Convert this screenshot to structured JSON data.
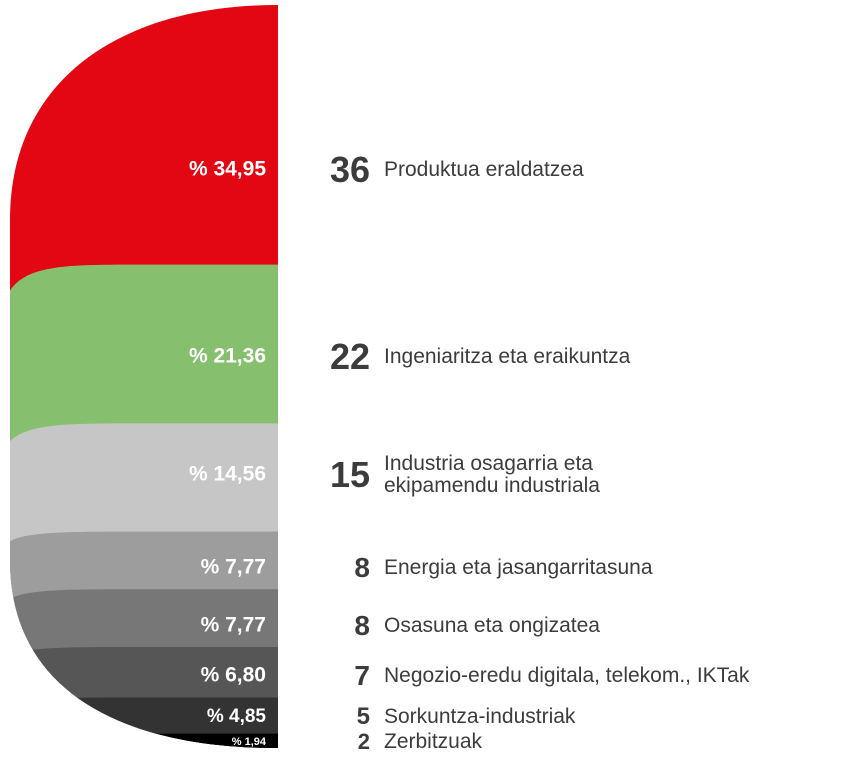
{
  "chart_data": {
    "type": "stacked-shape",
    "categories": [
      "Produktua eraldatzea",
      "Ingeniaritza eta eraikuntza",
      "Industria osagarria eta\nekipamendu industriala",
      "Energia eta jasangarritasuna",
      "Osasuna eta ongizatea",
      "Negozio-eredu digitala, telekom., IKTak",
      "Sorkuntza-industriak",
      "Zerbitzuak"
    ],
    "values": [
      34.95,
      21.36,
      14.56,
      7.77,
      7.77,
      6.8,
      4.85,
      1.94
    ],
    "value_labels": [
      "% 34,95",
      "% 21,36",
      "% 14,56",
      "% 7,77",
      "% 7,77",
      "% 6,80",
      "% 4,85",
      "% 1,94"
    ],
    "counts": [
      36,
      22,
      15,
      8,
      8,
      7,
      5,
      2
    ],
    "colors": [
      "#e30613",
      "#86c06f",
      "#c6c6c6",
      "#9d9d9d",
      "#777777",
      "#565656",
      "#333333",
      "#000000"
    ]
  }
}
